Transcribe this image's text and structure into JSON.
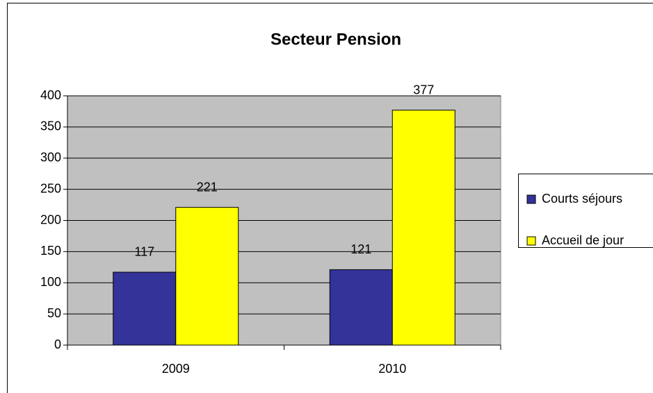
{
  "chart_data": {
    "type": "bar",
    "title": "Secteur Pension",
    "categories": [
      "2009",
      "2010"
    ],
    "series": [
      {
        "name": "Courts séjours",
        "color": "#333399",
        "values": [
          117,
          121
        ]
      },
      {
        "name": "Accueil de jour",
        "color": "#ffff00",
        "values": [
          221,
          377
        ]
      }
    ],
    "ylim": [
      0,
      400
    ],
    "yticks": [
      0,
      50,
      100,
      150,
      200,
      250,
      300,
      350,
      400
    ],
    "grid": true,
    "plot_background": "#c0c0c0",
    "legend": "right"
  }
}
